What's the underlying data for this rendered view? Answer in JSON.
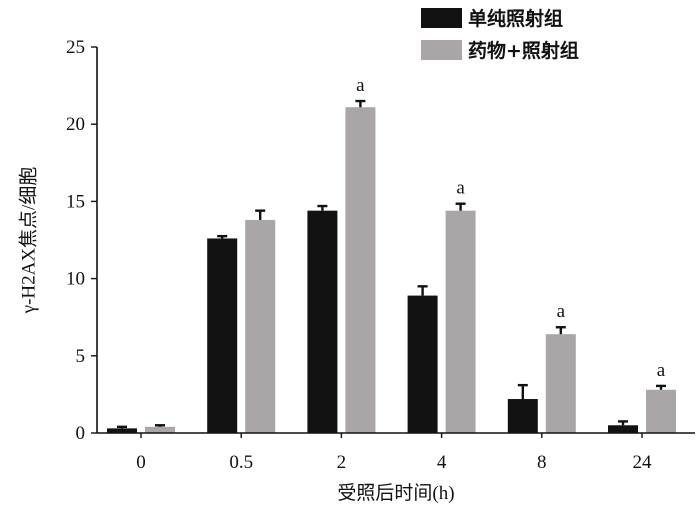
{
  "chart_data": {
    "type": "bar",
    "categories": [
      "0",
      "0.5",
      "2",
      "4",
      "8",
      "24"
    ],
    "series": [
      {
        "name": "单纯照射组",
        "color": "#121212",
        "values": [
          0.3,
          12.6,
          14.4,
          8.9,
          2.2,
          0.5
        ],
        "errors": [
          0.1,
          0.15,
          0.3,
          0.6,
          0.9,
          0.25
        ]
      },
      {
        "name": "药物+照射组",
        "color": "#aaa5a6",
        "values": [
          0.4,
          13.8,
          21.1,
          14.4,
          6.4,
          2.8
        ],
        "errors": [
          0.1,
          0.6,
          0.4,
          0.45,
          0.45,
          0.25
        ]
      }
    ],
    "annotations": [
      {
        "series_index": 1,
        "category_index": 2,
        "text": "a"
      },
      {
        "series_index": 1,
        "category_index": 3,
        "text": "a"
      },
      {
        "series_index": 1,
        "category_index": 4,
        "text": "a"
      },
      {
        "series_index": 1,
        "category_index": 5,
        "text": "a"
      }
    ],
    "xlabel": "受照后时间(h)",
    "ylabel": "γ-H2AX焦点/细胞",
    "ylim": [
      0,
      25
    ],
    "yticks": [
      0,
      5,
      10,
      15,
      20,
      25
    ],
    "grid": false,
    "legend": "top-right"
  }
}
